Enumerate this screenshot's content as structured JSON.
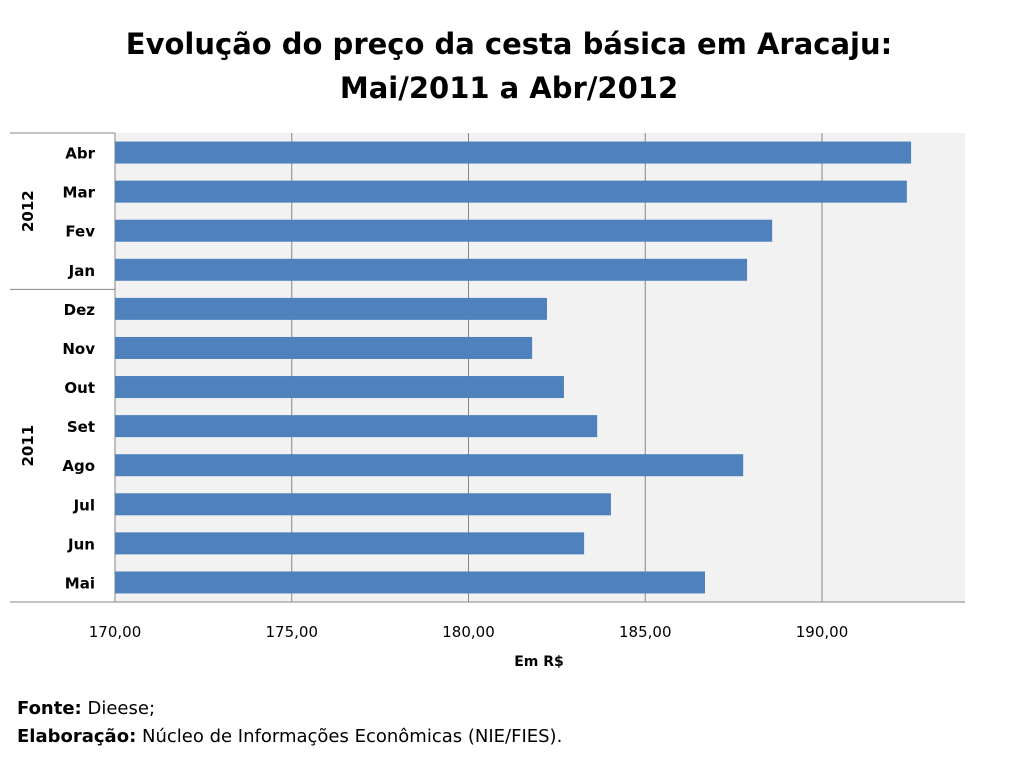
{
  "chart_data": {
    "type": "bar",
    "orientation": "horizontal",
    "title": "Evolução do preço da cesta básica em Aracaju:",
    "subtitle": "Mai/2011 a Abr/2012",
    "xlabel": "Em R$",
    "ylabel": "",
    "xlim": [
      170,
      194
    ],
    "x_ticks": [
      "170,00",
      "175,00",
      "180,00",
      "185,00",
      "190,00"
    ],
    "x_tick_values": [
      170,
      175,
      180,
      185,
      190
    ],
    "grid": true,
    "bar_color": "#4F81BD",
    "groups": [
      {
        "label": "2011",
        "count": 8
      },
      {
        "label": "2012",
        "count": 4
      }
    ],
    "categories": [
      "Mai",
      "Jun",
      "Jul",
      "Ago",
      "Set",
      "Out",
      "Nov",
      "Dez",
      "Jan",
      "Fev",
      "Mar",
      "Abr"
    ],
    "values": [
      186.69,
      183.27,
      184.03,
      187.77,
      183.64,
      182.7,
      181.8,
      182.22,
      187.88,
      188.59,
      192.4,
      192.52
    ]
  },
  "footer": {
    "source_label": "Fonte:",
    "source_value": " Dieese;",
    "elab_label": "Elaboração:",
    "elab_value": " Núcleo de Informações Econômicas (NIE/FIES)."
  }
}
